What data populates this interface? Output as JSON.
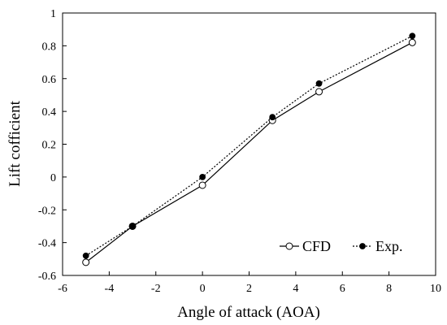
{
  "chart_data": {
    "type": "line",
    "title": "",
    "xlabel": "Angle of attack (AOA)",
    "ylabel": "Lift cofficient",
    "xlim": [
      -6,
      10
    ],
    "ylim": [
      -0.6,
      1
    ],
    "x_ticks": [
      -6,
      -4,
      -2,
      0,
      2,
      4,
      6,
      8,
      10
    ],
    "y_ticks": [
      -0.6,
      -0.4,
      -0.2,
      0,
      0.2,
      0.4,
      0.6,
      0.8,
      1
    ],
    "x_tick_labels": [
      "-6",
      "-4",
      "-2",
      "0",
      "2",
      "4",
      "6",
      "8",
      "10"
    ],
    "y_tick_labels": [
      "-0.6",
      "-0.4",
      "-0.2",
      "0",
      "0.2",
      "0.4",
      "0.6",
      "0.8",
      "1"
    ],
    "grid": false,
    "legend_position": "bottom-right",
    "series": [
      {
        "name": "CFD",
        "marker": "open-circle",
        "line_style": "solid",
        "x": [
          -5,
          -3,
          0,
          3,
          5,
          9
        ],
        "y": [
          -0.52,
          -0.3,
          -0.05,
          0.345,
          0.52,
          0.82
        ]
      },
      {
        "name": "Exp.",
        "marker": "filled-circle",
        "line_style": "dotted",
        "x": [
          -5,
          -3,
          0,
          3,
          5,
          9
        ],
        "y": [
          -0.48,
          -0.3,
          0.0,
          0.365,
          0.57,
          0.86
        ]
      }
    ],
    "colors": {
      "line": "#000000",
      "open_marker_fill": "#ffffff",
      "background": "#ffffff"
    }
  }
}
